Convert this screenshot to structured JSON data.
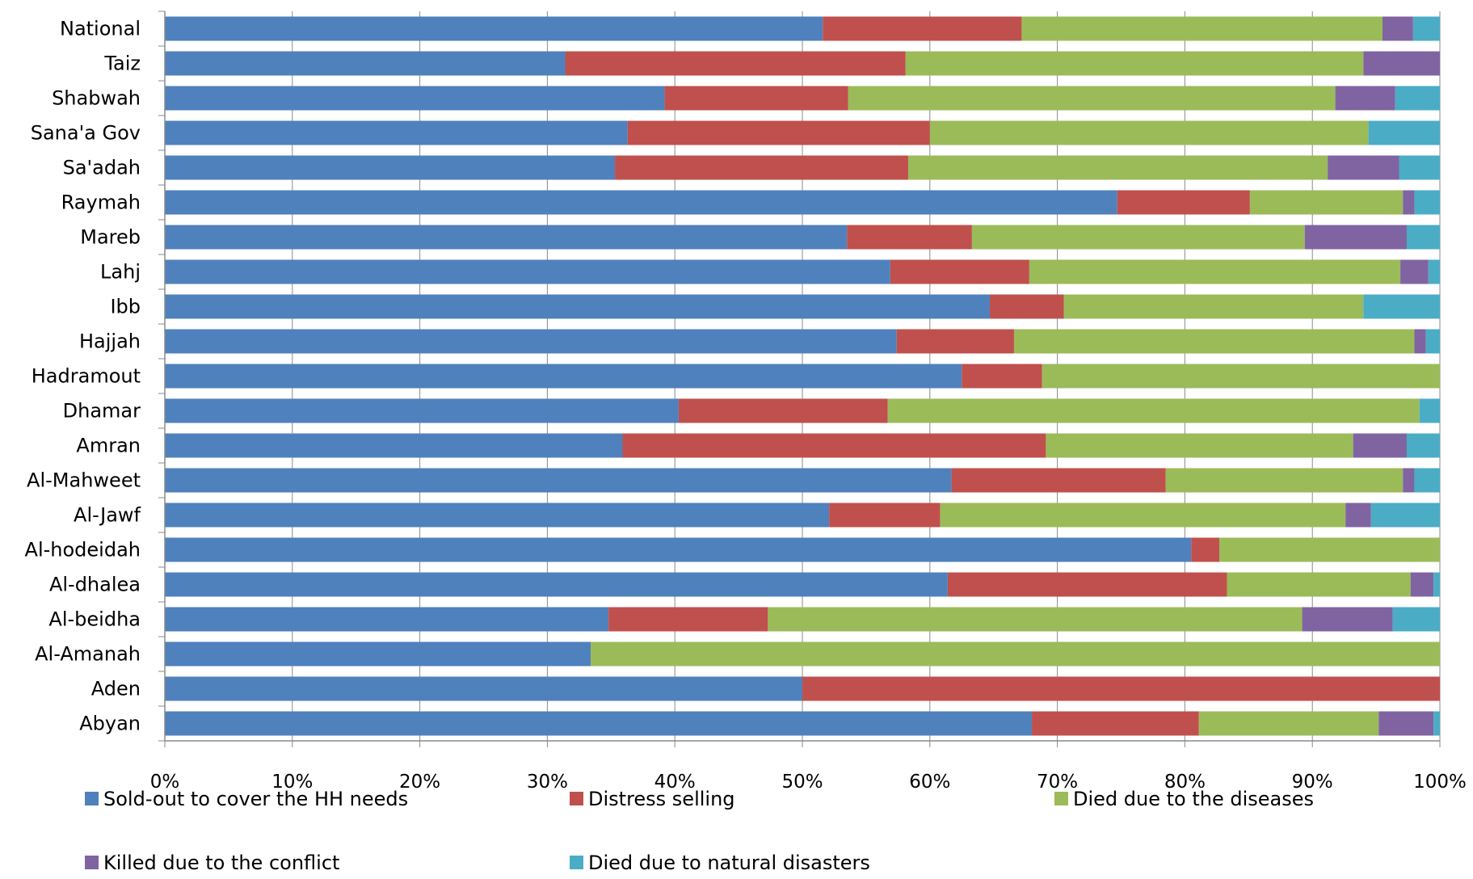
{
  "chart_data": {
    "type": "bar",
    "orientation": "horizontal",
    "stacked": "percent",
    "categories": [
      "National",
      "Taiz",
      "Shabwah",
      "Sana'a Gov",
      "Sa'adah",
      "Raymah",
      "Mareb",
      "Lahj",
      "Ibb",
      "Hajjah",
      "Hadramout",
      "Dhamar",
      "Amran",
      "Al-Mahweet",
      "Al-Jawf",
      "Al-hodeidah",
      "Al-dhalea",
      "Al-beidha",
      "Al-Amanah",
      "Aden",
      "Abyan"
    ],
    "series": [
      {
        "name": "Sold-out to cover the HH needs",
        "color": "#4F81BD",
        "values": [
          51.6,
          31.4,
          39.2,
          36.3,
          35.3,
          74.7,
          53.5,
          56.9,
          64.7,
          57.4,
          62.5,
          40.3,
          35.9,
          61.7,
          52.1,
          80.5,
          61.4,
          34.8,
          33.4,
          50.0,
          68.0
        ]
      },
      {
        "name": "Distress selling",
        "color": "#C0504D",
        "values": [
          15.6,
          26.7,
          14.4,
          23.7,
          23.0,
          10.4,
          9.8,
          10.9,
          5.8,
          9.2,
          6.3,
          16.4,
          33.2,
          16.8,
          8.7,
          2.2,
          21.9,
          12.5,
          0.0,
          50.0,
          13.1
        ]
      },
      {
        "name": "Died due to the diseases",
        "color": "#9BBB59",
        "values": [
          28.3,
          35.9,
          38.2,
          34.4,
          32.9,
          12.0,
          26.1,
          29.1,
          23.5,
          31.4,
          31.2,
          41.7,
          24.1,
          18.6,
          31.8,
          17.3,
          14.4,
          41.9,
          66.6,
          0.0,
          14.1
        ]
      },
      {
        "name": "Killed due to the conflict",
        "color": "#8064A2",
        "values": [
          2.4,
          6.0,
          4.7,
          0.0,
          5.6,
          0.9,
          8.0,
          2.2,
          0.0,
          0.9,
          0.0,
          0.0,
          4.2,
          0.9,
          2.0,
          0.0,
          1.8,
          7.1,
          0.0,
          0.0,
          4.3
        ]
      },
      {
        "name": "Died due to natural disasters",
        "color": "#4BACC6",
        "values": [
          2.1,
          0.0,
          3.5,
          5.6,
          3.2,
          2.0,
          2.6,
          0.9,
          6.0,
          1.1,
          0.0,
          1.6,
          2.6,
          2.0,
          5.4,
          0.0,
          0.5,
          3.7,
          0.0,
          0.0,
          0.5
        ]
      }
    ],
    "xlim": [
      0,
      100
    ],
    "xticks": [
      "0%",
      "10%",
      "20%",
      "30%",
      "40%",
      "50%",
      "60%",
      "70%",
      "80%",
      "90%",
      "100%"
    ],
    "grid": true,
    "legend_position": "bottom",
    "title": "",
    "xlabel": "",
    "ylabel": ""
  }
}
